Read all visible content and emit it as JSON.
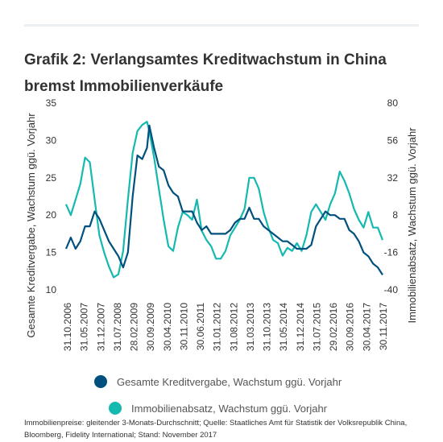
{
  "title": "Grafik 2: Verlangsamtes Kreditwachstum in China bremst Immobilienverkäufe",
  "footnote": "Immobilienpreise: gleitender 3-Monats-Durchschnitt; Quelle: Staatliches Amt für Statistik der Volksrepublik China, Bloomberg, Fidelity International; Stand: November 2017",
  "colors": {
    "credit": "#00507d",
    "property": "#15b9b0",
    "text": "#333333"
  },
  "chart_data": {
    "type": "line",
    "title": "Grafik 2: Verlangsamtes Kreditwachstum in China bremst Immobilienverkäufe",
    "ylabel_left": "Gesamte Kreditvergabe, Wachstum ggü. Vorjahr",
    "ylabel_right": "Immobilienabsatz, Wachstum ggü. Vorjahr",
    "ylim_left": [
      10,
      35
    ],
    "ylim_right": [
      -40,
      80
    ],
    "yticks_left": [
      35,
      30,
      25,
      20,
      15,
      10
    ],
    "yticks_right": [
      80,
      56,
      32,
      8,
      -16,
      -40
    ],
    "x_tick_labels": [
      "31.10.2006",
      "31.05.2007",
      "31.12.2007",
      "31.07.2008",
      "28.02.2009",
      "30.09.2009",
      "30.04.2010",
      "30.11.2010",
      "30.06.2011",
      "31.01.2012",
      "31.08.2012",
      "31.03.2013",
      "31.10.2013",
      "31.05.2014",
      "31.12.2014",
      "31.07.2015",
      "29.02.2016",
      "30.09.2016",
      "30.04.2017",
      "30.11.2017"
    ],
    "x_range": [
      "2006-10",
      "2017-11"
    ],
    "grid": false,
    "legend_position": "bottom",
    "series": [
      {
        "name": "Gesamte Kreditvergabe, Wachstum ggü. Vorjahr",
        "axis": "left",
        "x": [
          "2006-10",
          "2006-12",
          "2007-02",
          "2007-04",
          "2007-06",
          "2007-08",
          "2007-10",
          "2007-12",
          "2008-02",
          "2008-04",
          "2008-06",
          "2008-08",
          "2008-10",
          "2008-12",
          "2009-02",
          "2009-04",
          "2009-06",
          "2009-08",
          "2009-09",
          "2009-11",
          "2010-01",
          "2010-03",
          "2010-05",
          "2010-07",
          "2010-09",
          "2010-11",
          "2011-01",
          "2011-03",
          "2011-05",
          "2011-07",
          "2011-09",
          "2011-11",
          "2012-01",
          "2012-03",
          "2012-05",
          "2012-07",
          "2012-09",
          "2012-11",
          "2013-01",
          "2013-03",
          "2013-05",
          "2013-07",
          "2013-09",
          "2013-11",
          "2014-01",
          "2014-03",
          "2014-05",
          "2014-07",
          "2014-09",
          "2014-11",
          "2015-01",
          "2015-03",
          "2015-05",
          "2015-07",
          "2015-09",
          "2015-11",
          "2016-01",
          "2016-03",
          "2016-05",
          "2016-07",
          "2016-09",
          "2016-11",
          "2017-01",
          "2017-03",
          "2017-05",
          "2017-07",
          "2017-09",
          "2017-11"
        ],
        "values": [
          15.5,
          17,
          15.5,
          16.5,
          18.5,
          18.5,
          20.5,
          19.5,
          18,
          16.5,
          15.5,
          14.5,
          13,
          15,
          22.5,
          28,
          27.5,
          29,
          32,
          29,
          26.5,
          26,
          24,
          23,
          22.5,
          20.5,
          20.5,
          20.5,
          19,
          18,
          18.5,
          17.5,
          17.5,
          17.5,
          17.5,
          18,
          19,
          19.5,
          19.5,
          21,
          19.5,
          19.5,
          18.5,
          18,
          17.5,
          17,
          16.5,
          16.5,
          16,
          15.5,
          15.5,
          15.5,
          16,
          18.5,
          19.5,
          20.5,
          20,
          20,
          19.5,
          19.5,
          18,
          17.5,
          16.5,
          15,
          14.5,
          13.5,
          13,
          12
        ]
      },
      {
        "name": "Immobilienabsatz, Wachstum ggü. Vorjahr",
        "axis": "right",
        "x": [
          "2006-10",
          "2006-12",
          "2007-02",
          "2007-04",
          "2007-06",
          "2007-08",
          "2007-10",
          "2007-12",
          "2008-02",
          "2008-04",
          "2008-06",
          "2008-08",
          "2008-10",
          "2008-12",
          "2009-02",
          "2009-04",
          "2009-06",
          "2009-08",
          "2009-09",
          "2009-11",
          "2010-01",
          "2010-03",
          "2010-05",
          "2010-07",
          "2010-09",
          "2010-11",
          "2011-01",
          "2011-03",
          "2011-05",
          "2011-07",
          "2011-09",
          "2011-11",
          "2012-01",
          "2012-03",
          "2012-05",
          "2012-07",
          "2012-09",
          "2012-11",
          "2013-01",
          "2013-03",
          "2013-05",
          "2013-07",
          "2013-09",
          "2013-11",
          "2014-01",
          "2014-03",
          "2014-05",
          "2014-07",
          "2014-09",
          "2014-11",
          "2015-01",
          "2015-03",
          "2015-05",
          "2015-07",
          "2015-09",
          "2015-11",
          "2016-01",
          "2016-03",
          "2016-05",
          "2016-07",
          "2016-09",
          "2016-11",
          "2017-01",
          "2017-03",
          "2017-05",
          "2017-07",
          "2017-09",
          "2017-11"
        ],
        "values": [
          15,
          8,
          18,
          28,
          45,
          42,
          18,
          -5,
          -16,
          -25,
          -32,
          -30,
          -15,
          18,
          48,
          62,
          66,
          68,
          62,
          45,
          25,
          5,
          -12,
          -15,
          0,
          10,
          8,
          5,
          18,
          -2,
          -8,
          -12,
          -20,
          -20,
          -15,
          -5,
          0,
          5,
          12,
          32,
          32,
          25,
          10,
          0,
          -8,
          -10,
          -18,
          -13,
          -15,
          -10,
          -15,
          -5,
          10,
          15,
          10,
          5,
          15,
          22,
          36,
          30,
          22,
          12,
          5,
          0,
          10,
          0,
          0,
          -8
        ]
      }
    ]
  },
  "legend": [
    {
      "label": "Gesamte Kreditvergabe, Wachstum ggü. Vorjahr"
    },
    {
      "label": "Immobilienabsatz, Wachstum ggü. Vorjahr"
    }
  ]
}
